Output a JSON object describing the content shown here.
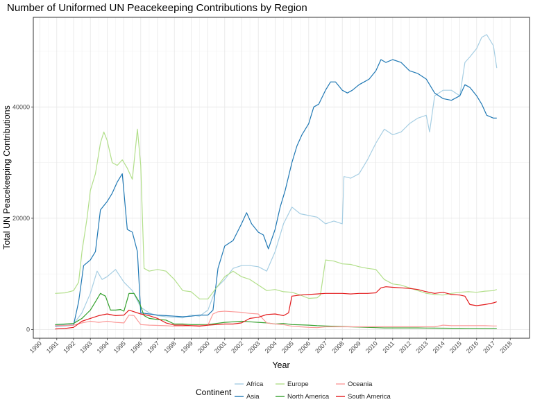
{
  "chart_data": {
    "type": "line",
    "title": "Number of Uniformed UN Peacekeeping Contributions by Region",
    "xlabel": "Year",
    "ylabel": "Total UN Peacekeeping Contributions",
    "xlim": [
      1990,
      2018
    ],
    "ylim": [
      0,
      55000
    ],
    "x_ticks": [
      "1990",
      "1991",
      "1992",
      "1993",
      "1994",
      "1995",
      "1996",
      "1997",
      "1998",
      "1999",
      "2000",
      "2001",
      "2002",
      "2003",
      "2004",
      "2005",
      "2006",
      "2007",
      "2008",
      "2009",
      "2010",
      "2011",
      "2012",
      "2013",
      "2014",
      "2015",
      "2016",
      "2017",
      "2018"
    ],
    "y_ticks": [
      0,
      20000,
      40000
    ],
    "y_tick_labels": [
      "0",
      "20000",
      "40000"
    ],
    "grid": true,
    "legend": {
      "title": "Continent",
      "position": "bottom"
    },
    "series": [
      {
        "name": "Africa",
        "color": "#a6cee3",
        "x": [
          1990.9,
          1991.5,
          1992.0,
          1992.5,
          1993.0,
          1993.4,
          1993.7,
          1994.0,
          1994.5,
          1995.0,
          1995.5,
          1996.0,
          1996.5,
          1997.0,
          1997.5,
          1998.0,
          1998.5,
          1999.0,
          1999.5,
          2000.0,
          2000.5,
          2001.0,
          2001.5,
          2002.0,
          2002.5,
          2003.0,
          2003.5,
          2004.0,
          2004.5,
          2005.0,
          2005.5,
          2006.0,
          2006.5,
          2007.0,
          2007.5,
          2008.0,
          2008.1,
          2008.5,
          2009.0,
          2009.5,
          2010.0,
          2010.5,
          2011.0,
          2011.5,
          2012.0,
          2012.5,
          2013.0,
          2013.2,
          2013.5,
          2014.0,
          2014.5,
          2015.0,
          2015.3,
          2015.6,
          2016.0,
          2016.3,
          2016.6,
          2017.0,
          2017.2
        ],
        "y": [
          800,
          900,
          1000,
          3000,
          6500,
          10500,
          9000,
          9500,
          10800,
          8500,
          7000,
          4000,
          3000,
          2500,
          2300,
          2200,
          2100,
          2600,
          2400,
          3500,
          7500,
          9000,
          11000,
          11500,
          11500,
          11300,
          10500,
          14000,
          19000,
          22000,
          20800,
          20500,
          20200,
          19000,
          19500,
          19000,
          27500,
          27200,
          28000,
          30500,
          33500,
          36000,
          35000,
          35500,
          37000,
          38000,
          38500,
          35500,
          42000,
          43000,
          43000,
          42000,
          48000,
          49000,
          50500,
          52500,
          53000,
          51000,
          47000
        ]
      },
      {
        "name": "Asia",
        "color": "#1f78b4",
        "x": [
          1990.9,
          1991.5,
          1992.0,
          1992.3,
          1992.6,
          1993.0,
          1993.3,
          1993.6,
          1994.0,
          1994.3,
          1994.6,
          1994.9,
          1995.2,
          1995.5,
          1995.8,
          1996.0,
          1996.5,
          1997.0,
          1997.5,
          1998.0,
          1998.5,
          1999.0,
          1999.5,
          2000.0,
          2000.3,
          2000.6,
          2001.0,
          2001.5,
          2002.0,
          2002.3,
          2002.6,
          2003.0,
          2003.3,
          2003.6,
          2004.0,
          2004.3,
          2004.6,
          2005.0,
          2005.3,
          2005.6,
          2006.0,
          2006.3,
          2006.6,
          2007.0,
          2007.3,
          2007.6,
          2008.0,
          2008.3,
          2008.6,
          2009.0,
          2009.3,
          2009.6,
          2010.0,
          2010.3,
          2010.6,
          2011.0,
          2011.5,
          2012.0,
          2012.5,
          2013.0,
          2013.5,
          2014.0,
          2014.5,
          2015.0,
          2015.3,
          2015.6,
          2016.0,
          2016.3,
          2016.6,
          2017.0,
          2017.2
        ],
        "y": [
          600,
          700,
          800,
          5000,
          11500,
          12500,
          14000,
          21500,
          23000,
          24500,
          26500,
          28000,
          18000,
          17500,
          14000,
          3000,
          2800,
          2600,
          2500,
          2400,
          2300,
          2400,
          2600,
          2600,
          3500,
          11000,
          15000,
          16000,
          19000,
          21000,
          19000,
          17500,
          17000,
          14500,
          18000,
          22000,
          25000,
          30000,
          33000,
          35000,
          37000,
          40000,
          40500,
          43000,
          44500,
          44500,
          43000,
          42500,
          43000,
          44000,
          44500,
          45000,
          46500,
          48500,
          48000,
          48500,
          48000,
          46500,
          46000,
          45000,
          42500,
          41500,
          41200,
          42000,
          44000,
          43500,
          42000,
          40500,
          38500,
          38000,
          38000
        ]
      },
      {
        "name": "Europe",
        "color": "#b2df8a",
        "x": [
          1990.9,
          1991.5,
          1992.0,
          1992.3,
          1992.5,
          1992.8,
          1993.0,
          1993.3,
          1993.6,
          1993.8,
          1994.0,
          1994.3,
          1994.6,
          1994.9,
          1995.2,
          1995.5,
          1995.8,
          1996.0,
          1996.2,
          1996.5,
          1997.0,
          1997.5,
          1998.0,
          1998.5,
          1999.0,
          1999.5,
          2000.0,
          2000.5,
          2001.0,
          2001.5,
          2002.0,
          2002.5,
          2003.0,
          2003.5,
          2004.0,
          2004.5,
          2005.0,
          2005.5,
          2006.0,
          2006.5,
          2006.7,
          2007.0,
          2007.5,
          2008.0,
          2008.5,
          2009.0,
          2009.5,
          2010.0,
          2010.5,
          2011.0,
          2011.5,
          2012.0,
          2012.5,
          2013.0,
          2013.5,
          2014.0,
          2014.5,
          2015.0,
          2015.5,
          2016.0,
          2016.5,
          2017.0,
          2017.2
        ],
        "y": [
          6500,
          6600,
          7000,
          8500,
          14000,
          20000,
          25000,
          28000,
          33500,
          35500,
          34000,
          30000,
          29500,
          30500,
          29000,
          27000,
          36000,
          29500,
          11000,
          10500,
          10800,
          10500,
          9000,
          7000,
          6800,
          5500,
          5500,
          7500,
          9500,
          10500,
          9500,
          9000,
          8000,
          7000,
          7200,
          6800,
          6700,
          6200,
          5600,
          5700,
          6200,
          12500,
          12300,
          11800,
          11700,
          11300,
          11000,
          10800,
          9000,
          8200,
          8000,
          7500,
          7000,
          6500,
          6300,
          6200,
          6500,
          6700,
          6800,
          6700,
          6900,
          7000,
          7200
        ]
      },
      {
        "name": "North America",
        "color": "#33a02c",
        "x": [
          1990.9,
          1991.5,
          1992.0,
          1992.5,
          1993.0,
          1993.3,
          1993.6,
          1993.9,
          1994.2,
          1994.5,
          1994.8,
          1995.0,
          1995.3,
          1995.6,
          1995.9,
          1996.2,
          1996.5,
          1997.0,
          1997.5,
          1998.0,
          1998.5,
          1999.0,
          1999.5,
          2000.0,
          2000.5,
          2001.0,
          2001.5,
          2002.0,
          2002.5,
          2003.0,
          2003.5,
          2004.0,
          2004.5,
          2005.0,
          2005.5,
          2006.0,
          2006.5,
          2007.0,
          2007.5,
          2008.0,
          2008.5,
          2009.0,
          2009.5,
          2010.0,
          2010.5,
          2011.0,
          2011.5,
          2012.0,
          2012.5,
          2013.0,
          2013.5,
          2014.0,
          2014.5,
          2015.0,
          2015.5,
          2016.0,
          2016.5,
          2017.0,
          2017.2
        ],
        "y": [
          900,
          1000,
          1100,
          2000,
          3500,
          5000,
          6500,
          6000,
          3500,
          3500,
          3600,
          3300,
          6500,
          6500,
          5000,
          2500,
          2000,
          1800,
          1700,
          1000,
          1000,
          900,
          900,
          900,
          1100,
          1300,
          1400,
          1500,
          1400,
          1300,
          1200,
          1000,
          1100,
          900,
          850,
          800,
          700,
          650,
          600,
          550,
          500,
          450,
          400,
          350,
          300,
          300,
          300,
          300,
          300,
          280,
          260,
          250,
          240,
          240,
          230,
          220,
          210,
          210,
          210
        ]
      },
      {
        "name": "Oceania",
        "color": "#fb9a99",
        "x": [
          1990.9,
          1991.5,
          1992.0,
          1992.5,
          1993.0,
          1993.5,
          1994.0,
          1994.5,
          1995.0,
          1995.3,
          1995.6,
          1996.0,
          1996.5,
          1997.0,
          1997.5,
          1998.0,
          1998.5,
          1999.0,
          1999.5,
          2000.0,
          2000.3,
          2000.6,
          2001.0,
          2001.5,
          2002.0,
          2002.5,
          2003.0,
          2003.5,
          2004.0,
          2004.5,
          2005.0,
          2005.5,
          2006.0,
          2006.5,
          2007.0,
          2007.5,
          2008.0,
          2008.5,
          2009.0,
          2009.5,
          2010.0,
          2010.5,
          2011.0,
          2011.5,
          2012.0,
          2012.5,
          2013.0,
          2013.5,
          2014.0,
          2014.5,
          2015.0,
          2015.5,
          2016.0,
          2016.5,
          2017.0,
          2017.2
        ],
        "y": [
          700,
          750,
          800,
          1200,
          1500,
          1300,
          1500,
          1300,
          1200,
          2600,
          2500,
          900,
          800,
          750,
          700,
          600,
          600,
          700,
          750,
          800,
          2800,
          3200,
          3300,
          3200,
          3100,
          2900,
          2800,
          1200,
          1000,
          900,
          600,
          500,
          400,
          350,
          500,
          500,
          500,
          500,
          500,
          500,
          500,
          500,
          500,
          500,
          500,
          500,
          500,
          500,
          800,
          700,
          700,
          700,
          700,
          700,
          650,
          650
        ]
      },
      {
        "name": "South America",
        "color": "#e31a1c",
        "x": [
          1990.9,
          1991.5,
          1992.0,
          1992.5,
          1993.0,
          1993.5,
          1994.0,
          1994.5,
          1995.0,
          1995.3,
          1995.6,
          1996.0,
          1996.5,
          1997.0,
          1997.5,
          1998.0,
          1998.5,
          1999.0,
          1999.5,
          2000.0,
          2000.5,
          2001.0,
          2001.5,
          2002.0,
          2002.5,
          2003.0,
          2003.5,
          2004.0,
          2004.5,
          2004.8,
          2005.0,
          2005.5,
          2006.0,
          2006.5,
          2007.0,
          2007.5,
          2008.0,
          2008.5,
          2009.0,
          2009.5,
          2010.0,
          2010.3,
          2010.6,
          2011.0,
          2011.5,
          2012.0,
          2012.5,
          2013.0,
          2013.5,
          2014.0,
          2014.5,
          2015.0,
          2015.3,
          2015.6,
          2016.0,
          2016.5,
          2017.0,
          2017.2
        ],
        "y": [
          100,
          200,
          400,
          1500,
          2000,
          2500,
          2800,
          2500,
          2600,
          3500,
          3200,
          2800,
          2500,
          2000,
          1200,
          800,
          800,
          700,
          600,
          800,
          900,
          1000,
          1000,
          1200,
          2000,
          2200,
          2700,
          2800,
          2500,
          3000,
          6000,
          6200,
          6300,
          6400,
          6500,
          6500,
          6500,
          6400,
          6500,
          6500,
          6600,
          7500,
          7700,
          7600,
          7500,
          7400,
          7200,
          6800,
          6500,
          6700,
          6300,
          6200,
          6000,
          4500,
          4300,
          4500,
          4800,
          5000
        ]
      }
    ]
  }
}
